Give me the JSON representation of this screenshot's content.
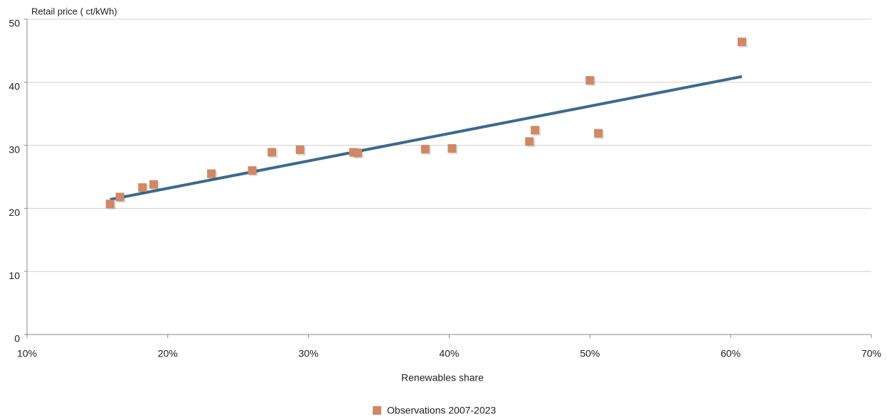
{
  "chart_data": {
    "type": "scatter",
    "y_label": "Retail price ( ct/kWh)",
    "x_label": "Renewables share",
    "xlim": [
      10,
      70
    ],
    "xticks": [
      {
        "value": 10,
        "label": "10%"
      },
      {
        "value": 20,
        "label": "20%"
      },
      {
        "value": 30,
        "label": "30%"
      },
      {
        "value": 40,
        "label": "40%"
      },
      {
        "value": 50,
        "label": "50%"
      },
      {
        "value": 60,
        "label": "60%"
      },
      {
        "value": 70,
        "label": "70%"
      }
    ],
    "ylim": [
      0,
      50
    ],
    "yticks": [
      0,
      10,
      20,
      30,
      40,
      50
    ],
    "grid": true,
    "legend": "bottom",
    "series": [
      {
        "name": "Observations 2007-2023",
        "color": "#d08866",
        "x": [
          15.9,
          16.6,
          18.2,
          19.0,
          23.1,
          26.0,
          27.4,
          29.4,
          33.2,
          33.5,
          38.3,
          40.2,
          45.7,
          46.1,
          50.0,
          50.6,
          60.8
        ],
        "values": [
          20.7,
          21.8,
          23.3,
          23.8,
          25.5,
          26.0,
          28.9,
          29.3,
          28.9,
          28.8,
          29.4,
          29.5,
          30.6,
          32.4,
          40.3,
          31.9,
          46.4
        ]
      }
    ],
    "trendline": {
      "color": "#3b6a8c",
      "x": [
        15.9,
        60.8
      ],
      "values": [
        21.4,
        40.9
      ]
    }
  }
}
